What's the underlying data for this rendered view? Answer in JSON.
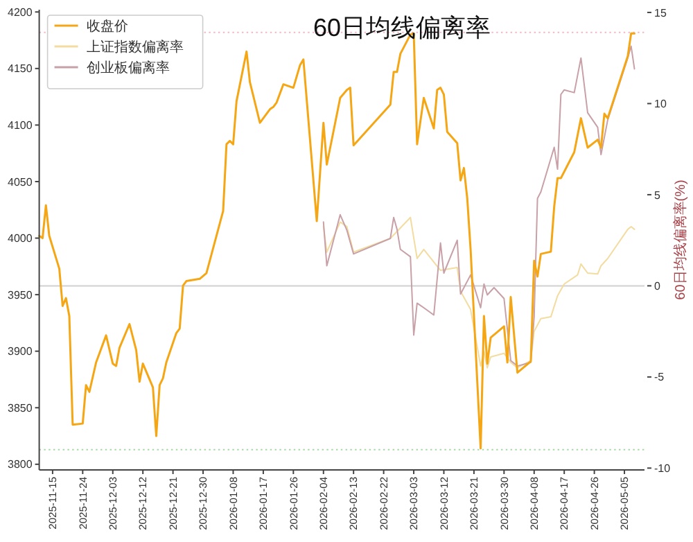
{
  "chart_data": {
    "type": "line",
    "title": "60日均线偏离率",
    "y2label": "60日均线偏离率(%)",
    "xlim": [
      "2025-11-11",
      "2026-05-11"
    ],
    "xticks": [
      "2025-11-15",
      "2025-11-24",
      "2025-12-03",
      "2025-12-12",
      "2025-12-21",
      "2025-12-30",
      "2026-01-08",
      "2026-01-17",
      "2026-01-26",
      "2026-02-04",
      "2026-02-13",
      "2026-02-22",
      "2026-03-03",
      "2026-03-12",
      "2026-03-21",
      "2026-03-30",
      "2026-04-08",
      "2026-04-17",
      "2026-04-26",
      "2026-05-05"
    ],
    "ylim": [
      3795,
      4202
    ],
    "yticks": [
      3800,
      3850,
      3900,
      3950,
      4000,
      4050,
      4100,
      4150,
      4200
    ],
    "y2lim": [
      -10.1,
      15.15
    ],
    "y2ticks": [
      -10,
      -5,
      0,
      5,
      10,
      15
    ],
    "legend": "top left",
    "grid": false,
    "ref_lines": [
      {
        "axis": "y",
        "value": 4182,
        "color": "#f2b8c6",
        "line_style": "dotted"
      },
      {
        "axis": "y",
        "value": 3813,
        "color": "#a8d8a8",
        "line_style": "dotted"
      },
      {
        "axis": "y2",
        "value": 0,
        "color": "#d0d0d0",
        "line_style": "solid"
      }
    ],
    "series": [
      {
        "name": "收盘价",
        "color": "#f5a614",
        "x": [
          "2025-11-11",
          "2025-11-12",
          "2025-11-13",
          "2025-11-14",
          "2025-11-17",
          "2025-11-18",
          "2025-11-19",
          "2025-11-20",
          "2025-11-21",
          "2025-11-24",
          "2025-11-25",
          "2025-11-26",
          "2025-11-28",
          "2025-12-01",
          "2025-12-03",
          "2025-12-04",
          "2025-12-05",
          "2025-12-08",
          "2025-12-10",
          "2025-12-11",
          "2025-12-12",
          "2025-12-15",
          "2025-12-16",
          "2025-12-17",
          "2025-12-18",
          "2025-12-19",
          "2025-12-22",
          "2025-12-23",
          "2025-12-24",
          "2025-12-25",
          "2025-12-29",
          "2025-12-31",
          "2026-01-05",
          "2026-01-06",
          "2026-01-07",
          "2026-01-08",
          "2026-01-09",
          "2026-01-12",
          "2026-01-13",
          "2026-01-16",
          "2026-01-19",
          "2026-01-20",
          "2026-01-21",
          "2026-01-23",
          "2026-01-26",
          "2026-01-28",
          "2026-01-29",
          "2026-02-02",
          "2026-02-04",
          "2026-02-05",
          "2026-02-09",
          "2026-02-11",
          "2026-02-12",
          "2026-02-13",
          "2026-02-24",
          "2026-02-25",
          "2026-02-26",
          "2026-02-27",
          "2026-03-02",
          "2026-03-03",
          "2026-03-04",
          "2026-03-06",
          "2026-03-09",
          "2026-03-10",
          "2026-03-11",
          "2026-03-12",
          "2026-03-13",
          "2026-03-16",
          "2026-03-17",
          "2026-03-18",
          "2026-03-19",
          "2026-03-20",
          "2026-03-23",
          "2026-03-24",
          "2026-03-25",
          "2026-03-26",
          "2026-03-30",
          "2026-03-31",
          "2026-04-01",
          "2026-04-03",
          "2026-04-07",
          "2026-04-08",
          "2026-04-09",
          "2026-04-10",
          "2026-04-13",
          "2026-04-14",
          "2026-04-15",
          "2026-04-16",
          "2026-04-20",
          "2026-04-22",
          "2026-04-24",
          "2026-04-27",
          "2026-04-28",
          "2026-04-29",
          "2026-04-30",
          "2026-05-06",
          "2026-05-07",
          "2026-05-08"
        ],
        "values": [
          4002,
          4000,
          4029,
          4002,
          3973,
          3940,
          3947,
          3931,
          3835,
          3836,
          3870,
          3864,
          3890,
          3914,
          3889,
          3887,
          3903,
          3924,
          3901,
          3873,
          3889,
          3868,
          3825,
          3870,
          3876,
          3890,
          3916,
          3920,
          3958,
          3962,
          3964,
          3969,
          4024,
          4083,
          4086,
          4083,
          4121,
          4165,
          4138,
          4102,
          4114,
          4116,
          4120,
          4136,
          4133,
          4153,
          4158,
          4015,
          4102,
          4065,
          4124,
          4131,
          4133,
          4082,
          4118,
          4147,
          4147,
          4163,
          4180,
          4181,
          4083,
          4124,
          4097,
          4131,
          4133,
          4127,
          4094,
          4084,
          4051,
          4062,
          4035,
          3990,
          3814,
          3931,
          3889,
          3912,
          3922,
          3890,
          3948,
          3881,
          3891,
          3980,
          3966,
          3986,
          3988,
          4028,
          4053,
          4053,
          4076,
          4106,
          4080,
          4087,
          4080,
          4110,
          4106,
          4161,
          4181,
          4181
        ]
      },
      {
        "name": "上证指数偏离率",
        "color": "#f3dca0",
        "axis": "y2",
        "x": [
          "2026-02-04",
          "2026-02-05",
          "2026-02-09",
          "2026-02-11",
          "2026-02-13",
          "2026-02-24",
          "2026-03-02",
          "2026-03-04",
          "2026-03-06",
          "2026-03-11",
          "2026-03-16",
          "2026-03-17",
          "2026-03-20",
          "2026-03-23",
          "2026-03-24",
          "2026-03-25",
          "2026-03-26",
          "2026-03-30",
          "2026-04-01",
          "2026-04-03",
          "2026-04-07",
          "2026-04-08",
          "2026-04-10",
          "2026-04-13",
          "2026-04-15",
          "2026-04-17",
          "2026-04-21",
          "2026-04-22",
          "2026-04-24",
          "2026-04-27",
          "2026-04-28",
          "2026-04-30",
          "2026-05-06",
          "2026-05-07",
          "2026-05-08"
        ],
        "values": [
          3.25,
          1.85,
          3.5,
          3.25,
          1.85,
          2.6,
          3.75,
          1.5,
          2.0,
          0.85,
          1.0,
          -0.3,
          -1.3,
          -4.4,
          -3.6,
          -4.5,
          -3.9,
          -3.7,
          -4.2,
          -4.5,
          -4.1,
          -2.5,
          -1.8,
          -1.7,
          -0.55,
          0.1,
          0.6,
          1.2,
          0.7,
          0.65,
          1.1,
          1.5,
          3.1,
          3.25,
          3.1
        ]
      },
      {
        "name": "创业板偏离率",
        "color": "#c8a0a8",
        "axis": "y2",
        "x": [
          "2026-02-04",
          "2026-02-05",
          "2026-02-09",
          "2026-02-11",
          "2026-02-13",
          "2026-02-24",
          "2026-02-25",
          "2026-02-26",
          "2026-02-27",
          "2026-03-02",
          "2026-03-03",
          "2026-03-04",
          "2026-03-06",
          "2026-03-09",
          "2026-03-11",
          "2026-03-12",
          "2026-03-16",
          "2026-03-17",
          "2026-03-20",
          "2026-03-23",
          "2026-03-24",
          "2026-03-25",
          "2026-03-27",
          "2026-03-30",
          "2026-04-01",
          "2026-04-03",
          "2026-04-07",
          "2026-04-08",
          "2026-04-09",
          "2026-04-10",
          "2026-04-14",
          "2026-04-15",
          "2026-04-16",
          "2026-04-17",
          "2026-04-20",
          "2026-04-22",
          "2026-04-24",
          "2026-04-27",
          "2026-04-28",
          "2026-04-30",
          "2026-05-06",
          "2026-05-07",
          "2026-05-08"
        ],
        "values": [
          3.5,
          1.1,
          3.9,
          3.05,
          1.75,
          2.6,
          3.75,
          3.1,
          2.0,
          1.6,
          -2.7,
          -0.95,
          -1.2,
          -1.6,
          2.35,
          0.7,
          2.5,
          -0.45,
          0.6,
          -1.2,
          0.1,
          -0.5,
          -0.1,
          -0.7,
          -4.1,
          -4.4,
          -4.2,
          -1.7,
          4.8,
          5.15,
          7.6,
          6.4,
          10.5,
          10.75,
          10.6,
          12.5,
          9.5,
          8.7,
          7.2,
          9.1,
          12.5,
          13.15,
          11.9
        ]
      }
    ]
  }
}
